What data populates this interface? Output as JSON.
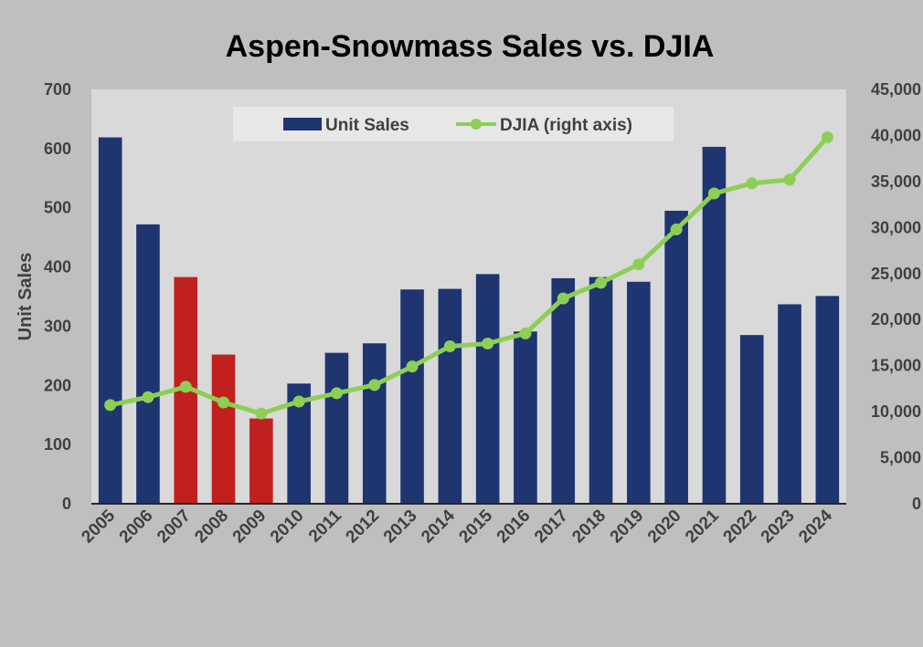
{
  "chart_data": {
    "type": "bar",
    "title": "Aspen-Snowmass Sales vs. DJIA",
    "xlabel": "",
    "ylabel": "Unit Sales",
    "y2label": "",
    "categories": [
      "2005",
      "2006",
      "2007",
      "2008",
      "2009",
      "2010",
      "2011",
      "2012",
      "2013",
      "2014",
      "2015",
      "2016",
      "2017",
      "2018",
      "2019",
      "2020",
      "2021",
      "2022",
      "2023",
      "2024"
    ],
    "ylim": [
      0,
      700
    ],
    "yticks": [
      "0",
      "100",
      "200",
      "300",
      "400",
      "500",
      "600",
      "700"
    ],
    "y2lim": [
      0,
      45000
    ],
    "y2ticks": [
      "0",
      "5,000",
      "10,000",
      "15,000",
      "20,000",
      "25,000",
      "30,000",
      "35,000",
      "40,000",
      "45,000"
    ],
    "legend_position": "top-center",
    "grid": false,
    "series": [
      {
        "name": "Unit Sales",
        "kind": "bar",
        "axis": "left",
        "color": "#1f3570",
        "highlight_color": "#c0201e",
        "highlight_categories": [
          "2007",
          "2008",
          "2009"
        ],
        "values": [
          619,
          472,
          383,
          252,
          144,
          203,
          255,
          271,
          362,
          363,
          388,
          291,
          381,
          383,
          375,
          495,
          603,
          285,
          337,
          351
        ]
      },
      {
        "name": "DJIA (right axis)",
        "kind": "line",
        "axis": "right",
        "color": "#8dcf56",
        "values": [
          10718,
          11577,
          12700,
          11000,
          9800,
          11100,
          12000,
          12900,
          14900,
          17100,
          17400,
          18500,
          22300,
          24000,
          26000,
          29800,
          33700,
          34800,
          35200,
          39800
        ]
      }
    ]
  }
}
